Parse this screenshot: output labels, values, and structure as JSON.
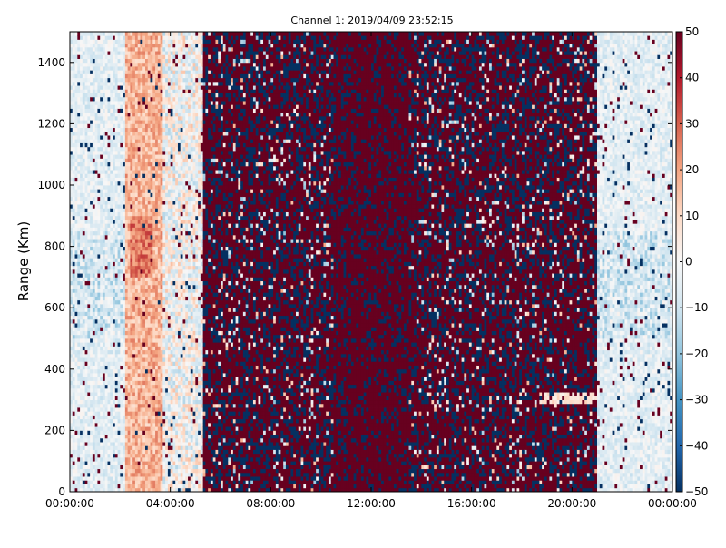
{
  "chart_data": {
    "type": "heatmap",
    "title": "Channel 1: 2019/04/09 23:52:15",
    "ylabel": "Range (Km)",
    "xlabel": "",
    "x_range_hours": [
      0,
      24
    ],
    "y_range_km": [
      0,
      1500
    ],
    "x_ticks": [
      {
        "value": 0,
        "label": "00:00:00"
      },
      {
        "value": 4,
        "label": "04:00:00"
      },
      {
        "value": 8,
        "label": "08:00:00"
      },
      {
        "value": 12,
        "label": "12:00:00"
      },
      {
        "value": 16,
        "label": "16:00:00"
      },
      {
        "value": 20,
        "label": "20:00:00"
      },
      {
        "value": 24,
        "label": "00:00:00"
      }
    ],
    "y_ticks": [
      0,
      200,
      400,
      600,
      800,
      1000,
      1200,
      1400
    ],
    "colorbar": {
      "min": -50,
      "max": 50,
      "ticks": [
        -50,
        -40,
        -30,
        -20,
        -10,
        0,
        10,
        20,
        30,
        40,
        50
      ],
      "colormap": [
        "#053061",
        "#2166ac",
        "#4393c3",
        "#92c5de",
        "#d1e5f0",
        "#f7f7f7",
        "#fddbc7",
        "#f4a582",
        "#d6604d",
        "#b2182b",
        "#67001f"
      ]
    },
    "regions": [
      {
        "from_hour": 0.0,
        "to_hour": 2.2,
        "character": "mostly light blue with white, values about -15 to 0"
      },
      {
        "from_hour": 2.2,
        "to_hour": 3.7,
        "character": "light red, values about 10 to 25"
      },
      {
        "from_hour": 3.7,
        "to_hour": 5.3,
        "character": "mixed pale blue and pale red"
      },
      {
        "from_hour": 5.3,
        "to_hour": 21.0,
        "character": "saturated noise alternating dark red (+50) and dark blue (-50)"
      },
      {
        "from_hour": 21.0,
        "to_hour": 24.0,
        "character": "mostly light blue with white, values about -15 to 0"
      }
    ]
  }
}
